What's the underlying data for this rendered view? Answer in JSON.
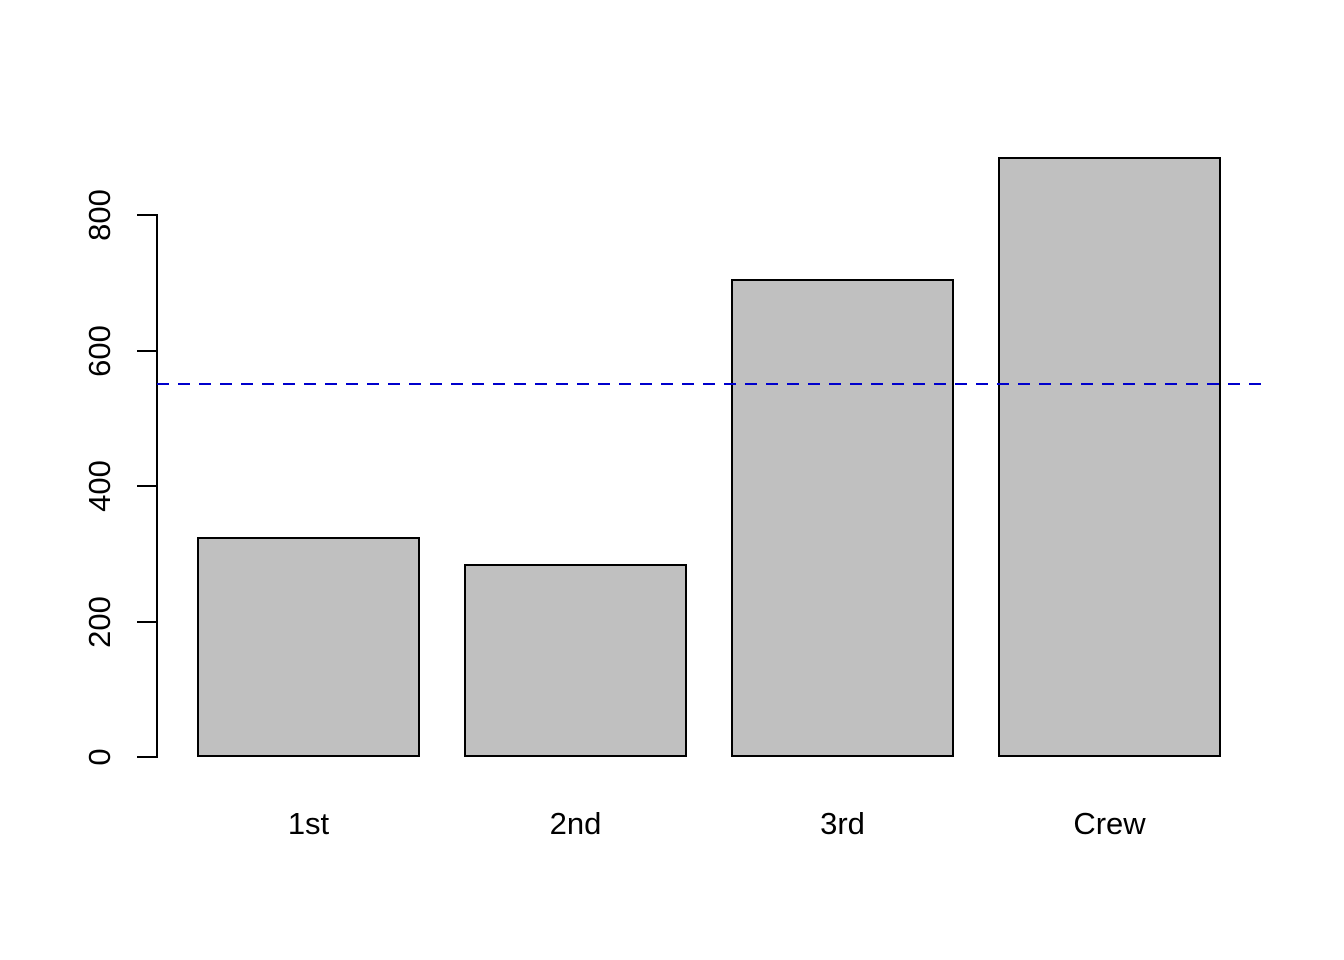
{
  "figure": {
    "background_color": "#ffffff"
  },
  "chart_data": {
    "type": "bar",
    "title": "",
    "xlabel": "",
    "ylabel": "",
    "categories": [
      "1st",
      "2nd",
      "3rd",
      "Crew"
    ],
    "values": [
      325,
      285,
      706,
      885
    ],
    "yticks": [
      0,
      200,
      400,
      600,
      800
    ],
    "ylim": [
      0,
      900
    ],
    "grid": false,
    "legend": false,
    "bar_fill_color": "#c0c0c0",
    "bar_border_color": "#000000",
    "axis_color": "#000000",
    "tick_label_color": "#000000",
    "reference_line": {
      "value": 550,
      "orientation": "horizontal",
      "style": "dashed",
      "color": "#0000cc"
    }
  }
}
